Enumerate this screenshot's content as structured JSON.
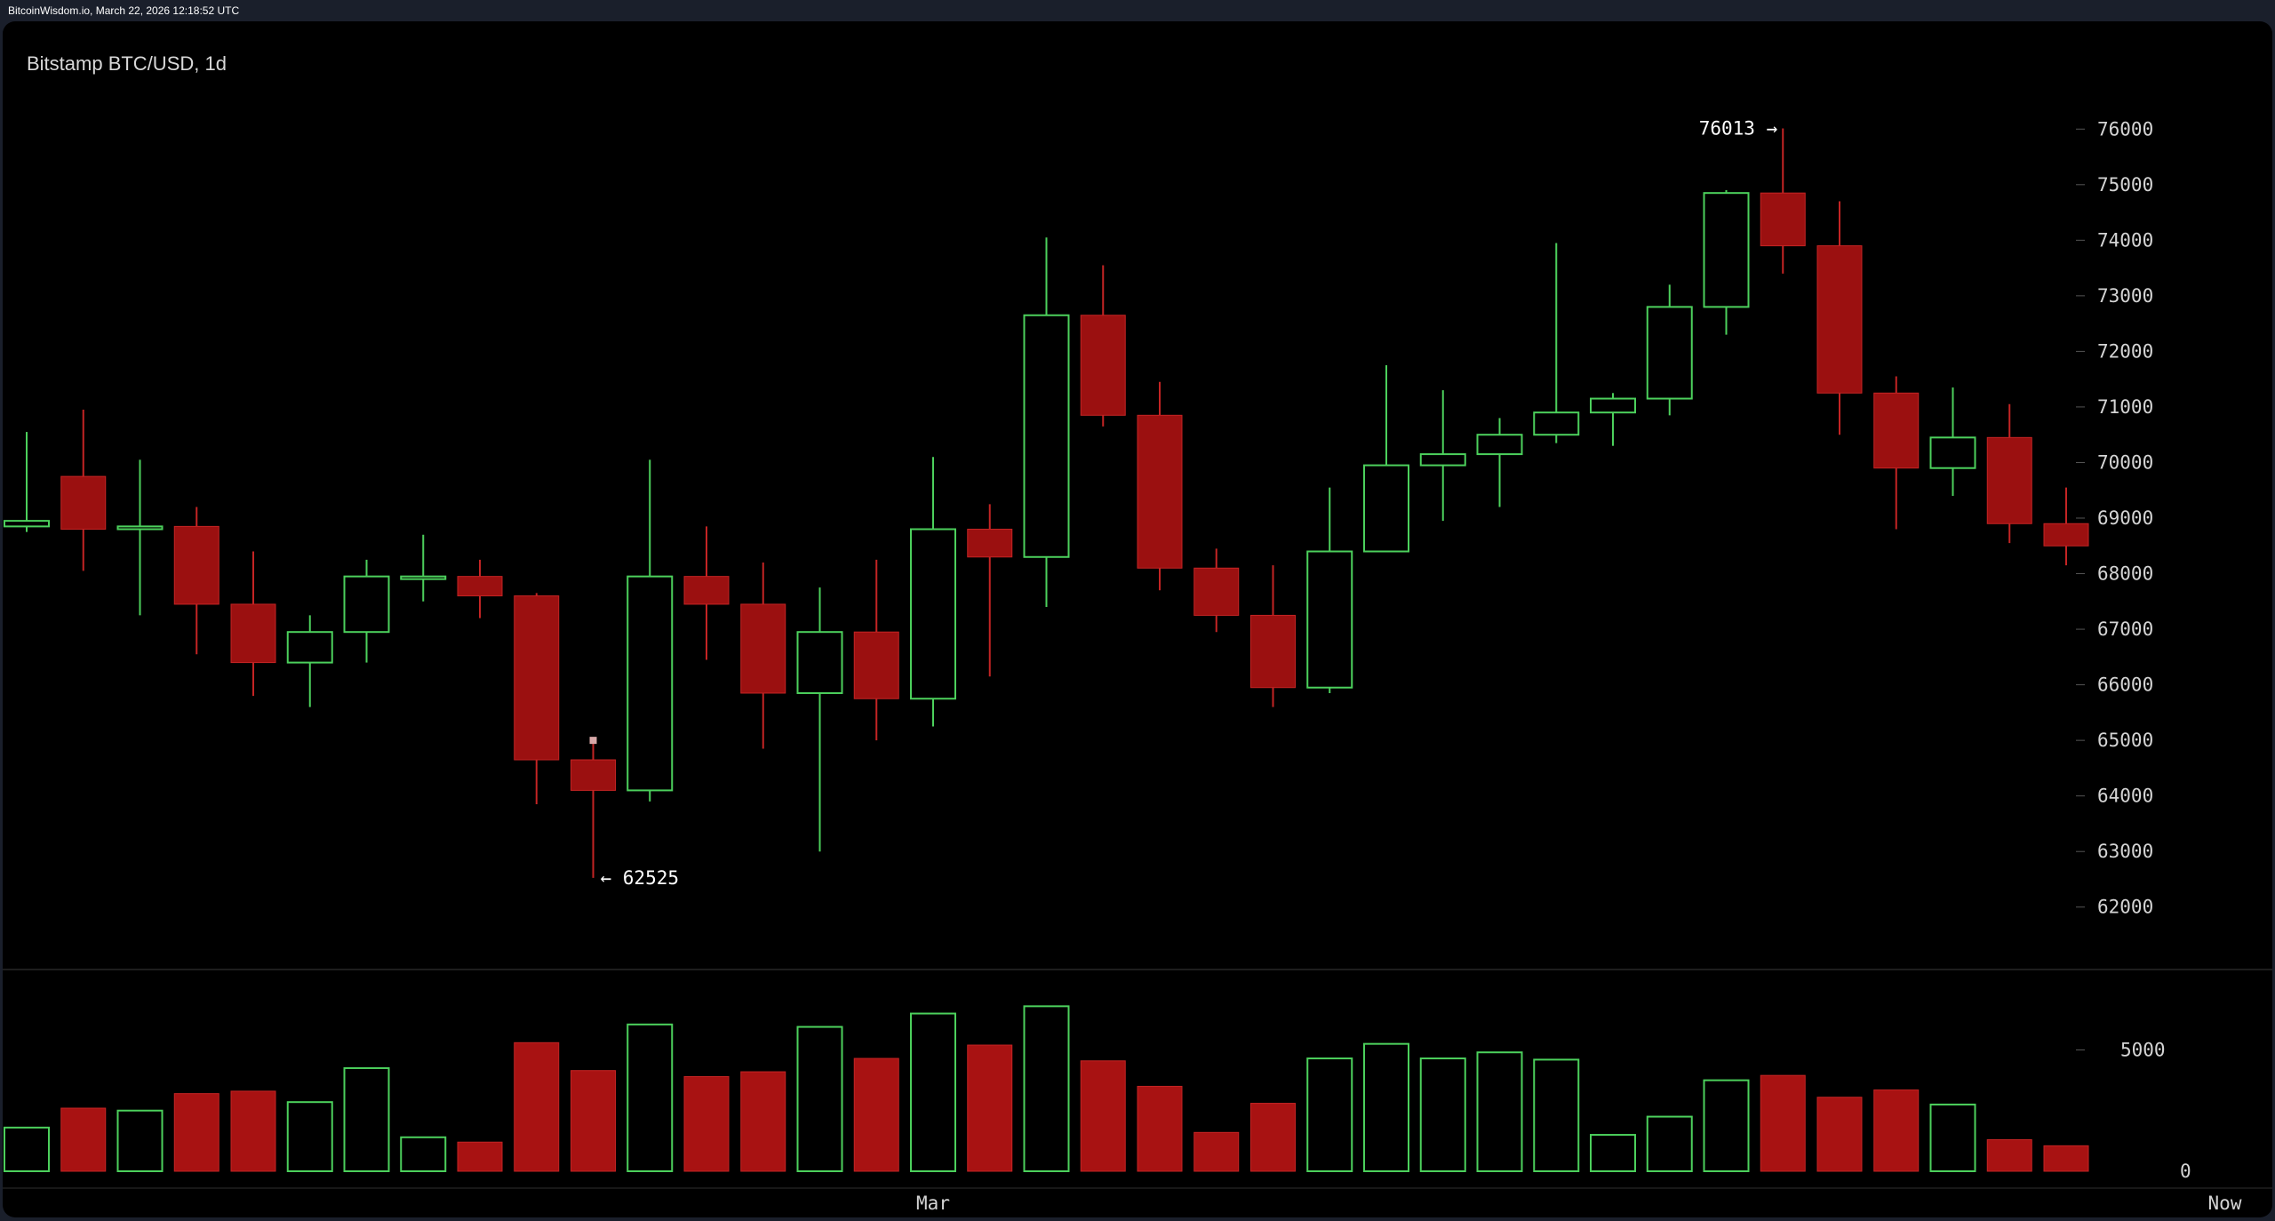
{
  "header": {
    "source_text": "BitcoinWisdom.io, March 22, 2026 12:18:52 UTC"
  },
  "chart_data": {
    "type": "candlestick",
    "title": "Bitstamp BTC/USD, 1d",
    "price_axis": {
      "ylim": [
        61500,
        76500
      ],
      "ticks": [
        76000,
        75000,
        74000,
        73000,
        72000,
        71000,
        70000,
        69000,
        68000,
        67000,
        66000,
        65000,
        64000,
        63000,
        62000
      ]
    },
    "volume_axis": {
      "ylim": [
        0,
        6300
      ],
      "ticks": [
        5000,
        0
      ]
    },
    "x_labels": [
      {
        "label": "Mar",
        "index": 16
      },
      {
        "label": "Now",
        "index": 38.8
      }
    ],
    "annotations": [
      {
        "text": "76013 →",
        "index": 31,
        "value": 76013,
        "side": "left"
      },
      {
        "text": "← 62525",
        "index": 10,
        "value": 62525,
        "side": "right"
      }
    ],
    "colors": {
      "up": "#4cd05c",
      "down": "#9b1010",
      "down_wick": "#c42424"
    },
    "candles": [
      {
        "o": 68850,
        "h": 70550,
        "l": 68750,
        "c": 68950,
        "v": 1800
      },
      {
        "o": 69750,
        "h": 70950,
        "l": 68050,
        "c": 68800,
        "v": 2600
      },
      {
        "o": 68800,
        "h": 70050,
        "l": 67250,
        "c": 68850,
        "v": 2500
      },
      {
        "o": 68850,
        "h": 69200,
        "l": 66550,
        "c": 67450,
        "v": 3200
      },
      {
        "o": 67450,
        "h": 68400,
        "l": 65800,
        "c": 66400,
        "v": 3300
      },
      {
        "o": 66400,
        "h": 67250,
        "l": 65600,
        "c": 66950,
        "v": 2850
      },
      {
        "o": 66950,
        "h": 68250,
        "l": 66400,
        "c": 67950,
        "v": 4250
      },
      {
        "o": 67950,
        "h": 68700,
        "l": 67500,
        "c": 67950,
        "v": 1400
      },
      {
        "o": 67950,
        "h": 68250,
        "l": 67200,
        "c": 67600,
        "v": 1200
      },
      {
        "o": 67600,
        "h": 67650,
        "l": 63850,
        "c": 64650,
        "v": 5300
      },
      {
        "o": 64650,
        "h": 65000,
        "l": 62525,
        "c": 64100,
        "v": 4150
      },
      {
        "o": 64100,
        "h": 70050,
        "l": 63900,
        "c": 67950,
        "v": 6050
      },
      {
        "o": 67950,
        "h": 68850,
        "l": 66450,
        "c": 67450,
        "v": 3900
      },
      {
        "o": 67450,
        "h": 68200,
        "l": 64850,
        "c": 65850,
        "v": 4100
      },
      {
        "o": 65850,
        "h": 67750,
        "l": 63000,
        "c": 66950,
        "v": 5950
      },
      {
        "o": 66950,
        "h": 68250,
        "l": 65000,
        "c": 65750,
        "v": 4650
      },
      {
        "o": 65750,
        "h": 70100,
        "l": 65250,
        "c": 68800,
        "v": 6500
      },
      {
        "o": 68800,
        "h": 69250,
        "l": 66150,
        "c": 68300,
        "v": 5200
      },
      {
        "o": 68300,
        "h": 74050,
        "l": 67400,
        "c": 72650,
        "v": 6800
      },
      {
        "o": 72650,
        "h": 73550,
        "l": 70650,
        "c": 70850,
        "v": 4550
      },
      {
        "o": 70850,
        "h": 71450,
        "l": 67700,
        "c": 68100,
        "v": 3500
      },
      {
        "o": 68100,
        "h": 68450,
        "l": 66950,
        "c": 67250,
        "v": 1600
      },
      {
        "o": 67250,
        "h": 68150,
        "l": 65600,
        "c": 65950,
        "v": 2800
      },
      {
        "o": 65950,
        "h": 69550,
        "l": 65850,
        "c": 68400,
        "v": 4650
      },
      {
        "o": 68400,
        "h": 71750,
        "l": 68400,
        "c": 69950,
        "v": 5250
      },
      {
        "o": 69950,
        "h": 71300,
        "l": 68950,
        "c": 70150,
        "v": 4650
      },
      {
        "o": 70150,
        "h": 70800,
        "l": 69200,
        "c": 70500,
        "v": 4900
      },
      {
        "o": 70500,
        "h": 73950,
        "l": 70350,
        "c": 70900,
        "v": 4600
      },
      {
        "o": 70900,
        "h": 71250,
        "l": 70300,
        "c": 71150,
        "v": 1500
      },
      {
        "o": 71150,
        "h": 73200,
        "l": 70850,
        "c": 72800,
        "v": 2250
      },
      {
        "o": 72800,
        "h": 74900,
        "l": 72300,
        "c": 74850,
        "v": 3750
      },
      {
        "o": 74850,
        "h": 76013,
        "l": 73400,
        "c": 73900,
        "v": 3950
      },
      {
        "o": 73900,
        "h": 74700,
        "l": 70500,
        "c": 71250,
        "v": 3050
      },
      {
        "o": 71250,
        "h": 71550,
        "l": 68800,
        "c": 69900,
        "v": 3350
      },
      {
        "o": 69900,
        "h": 71350,
        "l": 69400,
        "c": 70450,
        "v": 2750
      },
      {
        "o": 70450,
        "h": 71050,
        "l": 68550,
        "c": 68900,
        "v": 1300
      },
      {
        "o": 68900,
        "h": 69550,
        "l": 68150,
        "c": 68500,
        "v": 1050
      }
    ]
  }
}
